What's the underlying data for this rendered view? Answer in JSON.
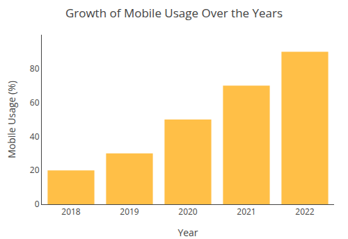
{
  "chart_data": {
    "type": "bar",
    "title": "Growth of Mobile Usage Over the Years",
    "xlabel": "Year",
    "ylabel": "Mobile Usage (%)",
    "categories": [
      "2018",
      "2019",
      "2020",
      "2021",
      "2022"
    ],
    "values": [
      20,
      30,
      50,
      70,
      90
    ],
    "color": "#FFBF47",
    "ylim": [
      0,
      100
    ],
    "yticks": [
      0,
      20,
      40,
      60,
      80
    ],
    "grid": false
  }
}
